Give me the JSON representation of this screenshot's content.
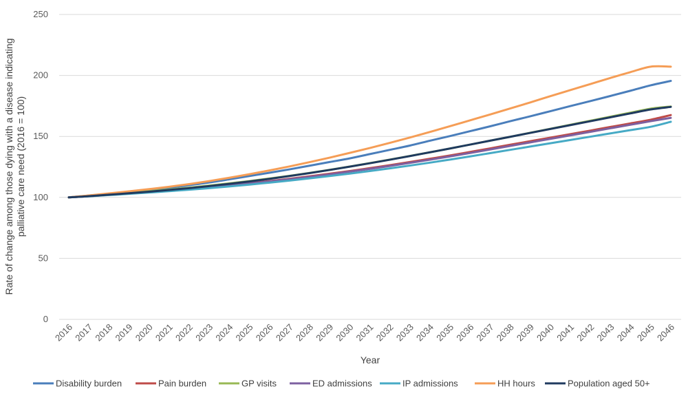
{
  "chart_data": {
    "type": "line",
    "title": "",
    "xlabel": "Year",
    "ylabel_lines": [
      "Rate of change among those dying with a disease indicating",
      "palliative care need (2016 = 100)"
    ],
    "ylim": [
      0,
      250
    ],
    "yticks": [
      0,
      50,
      100,
      150,
      200,
      250
    ],
    "grid": "horizontal",
    "legend_position": "bottom",
    "x": [
      "2016",
      "2017",
      "2018",
      "2019",
      "2020",
      "2021",
      "2022",
      "2023",
      "2024",
      "2025",
      "2026",
      "2027",
      "2028",
      "2029",
      "2030",
      "2031",
      "2032",
      "2033",
      "2034",
      "2035",
      "2036",
      "2037",
      "2038",
      "2039",
      "2040",
      "2041",
      "2042",
      "2043",
      "2044",
      "2045",
      "2046"
    ],
    "series": [
      {
        "name": "Disability burden",
        "color": "#4a7ebb",
        "values": [
          100,
          101.5,
          103,
          104.8,
          106.5,
          108,
          110,
          112.2,
          114.8,
          117.5,
          120.2,
          123,
          126,
          129,
          132,
          135.5,
          139,
          142.5,
          146.5,
          150.3,
          154.3,
          158.3,
          162.5,
          166.5,
          170.7,
          174.9,
          179,
          183.2,
          187.5,
          191.9,
          195.5
        ]
      },
      {
        "name": "Pain burden",
        "color": "#be4b48",
        "values": [
          100,
          101,
          102.1,
          103.3,
          104.5,
          105.7,
          107,
          108.5,
          110,
          111.7,
          113.4,
          115.3,
          117.3,
          119.4,
          121.6,
          124,
          126.4,
          129,
          131.7,
          134.4,
          137.3,
          140.2,
          143.2,
          146.1,
          149,
          151.9,
          154.8,
          157.8,
          160.7,
          163.7,
          167.5
        ]
      },
      {
        "name": "GP visits",
        "color": "#98b954",
        "values": [
          100,
          101.2,
          102.5,
          103.8,
          105.1,
          106.5,
          108,
          109.7,
          111.5,
          113.4,
          115.5,
          117.7,
          120.1,
          122.6,
          125.3,
          128.1,
          131,
          134,
          137,
          140.1,
          143.3,
          146.5,
          149.7,
          153,
          156.3,
          159.6,
          162.9,
          166.2,
          169.5,
          172.8,
          174.5
        ]
      },
      {
        "name": "ED admissions",
        "color": "#7d60a0",
        "values": [
          100,
          101,
          102.1,
          103.2,
          104.4,
          105.6,
          106.9,
          108.3,
          109.8,
          111.4,
          113.1,
          114.9,
          116.8,
          118.9,
          121.1,
          123.4,
          125.8,
          128.3,
          130.9,
          133.6,
          136.4,
          139.3,
          142.2,
          145.1,
          148,
          150.9,
          153.8,
          156.7,
          159.6,
          162.5,
          165.2
        ]
      },
      {
        "name": "IP admissions",
        "color": "#46aac5",
        "values": [
          100,
          100.9,
          101.9,
          102.9,
          104,
          105.1,
          106.3,
          107.6,
          109,
          110.5,
          112.1,
          113.8,
          115.6,
          117.5,
          119.5,
          121.6,
          123.8,
          126.1,
          128.5,
          131,
          133.6,
          136.3,
          139,
          141.7,
          144.4,
          147.1,
          149.8,
          152.5,
          155.2,
          157.9,
          162
        ]
      },
      {
        "name": "HH hours",
        "color": "#f59d56",
        "values": [
          100,
          101.6,
          103.3,
          105,
          106.8,
          108.7,
          110.9,
          113.4,
          116.1,
          119,
          122.1,
          125.4,
          128.9,
          132.6,
          136.5,
          140.5,
          144.7,
          149.1,
          153.7,
          158.4,
          163.2,
          168,
          172.9,
          177.9,
          183,
          188,
          193,
          198,
          202.8,
          207.2,
          207.2
        ]
      },
      {
        "name": "Population aged 50+",
        "color": "#1f3a5f",
        "values": [
          100,
          101,
          102.2,
          103.4,
          104.7,
          106.1,
          107.6,
          109.3,
          111.1,
          113.1,
          115.2,
          117.5,
          119.9,
          122.5,
          125.2,
          128,
          130.9,
          133.9,
          137,
          140.1,
          143.3,
          146.5,
          149.7,
          152.9,
          156.1,
          159.3,
          162.5,
          165.7,
          168.9,
          172.1,
          174.2
        ]
      }
    ]
  }
}
